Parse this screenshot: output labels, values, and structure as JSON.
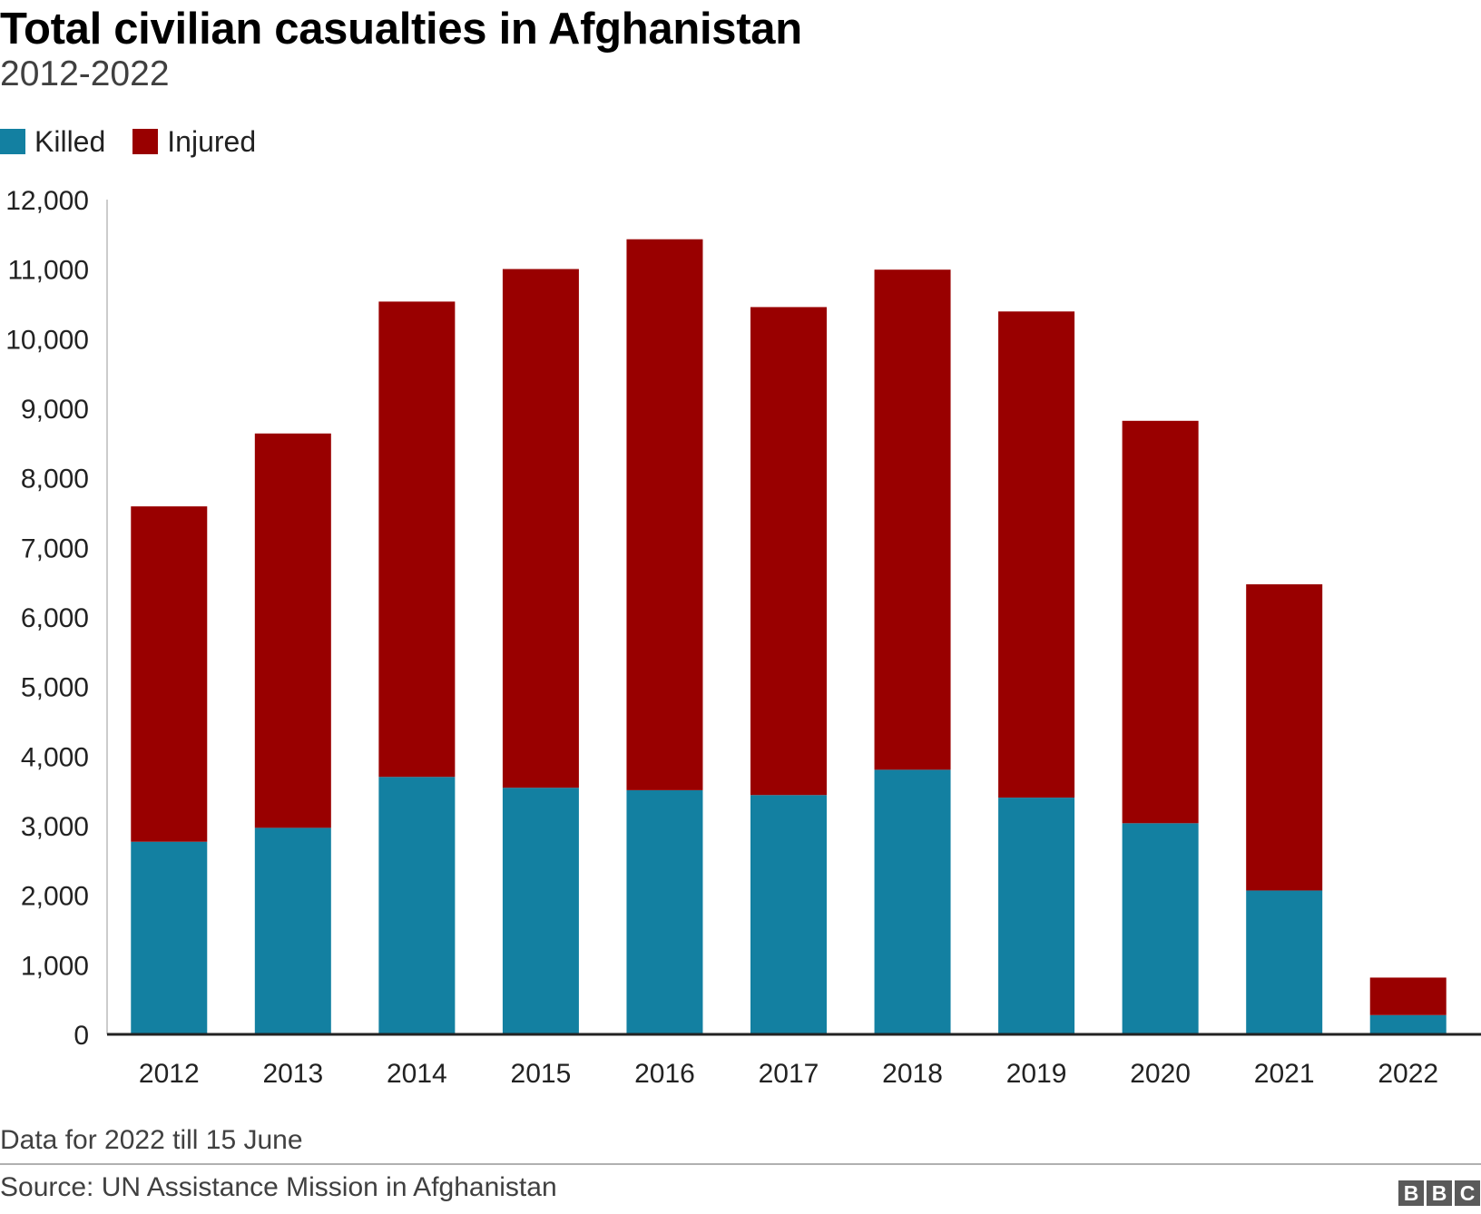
{
  "chart_data": {
    "type": "bar",
    "stacked": true,
    "title": "Total civilian casualties in Afghanistan",
    "subtitle": "2012-2022",
    "categories": [
      "2012",
      "2013",
      "2014",
      "2015",
      "2016",
      "2017",
      "2018",
      "2019",
      "2020",
      "2021",
      "2022"
    ],
    "series": [
      {
        "name": "Killed",
        "color": "#1380a1",
        "values": [
          2769,
          2969,
          3701,
          3545,
          3510,
          3440,
          3804,
          3403,
          3035,
          2068,
          277
        ]
      },
      {
        "name": "Injured",
        "color": "#990000",
        "values": [
          4821,
          5669,
          6833,
          7457,
          7920,
          7015,
          7189,
          6989,
          5785,
          4402,
          539
        ]
      }
    ],
    "ylim": [
      0,
      12000
    ],
    "yticks": [
      0,
      1000,
      2000,
      3000,
      4000,
      5000,
      6000,
      7000,
      8000,
      9000,
      10000,
      11000,
      12000
    ],
    "ytick_labels": [
      "0",
      "1,000",
      "2,000",
      "3,000",
      "4,000",
      "5,000",
      "6,000",
      "7,000",
      "8,000",
      "9,000",
      "10,000",
      "11,000",
      "12,000"
    ],
    "xlabel": "",
    "ylabel": "",
    "grid": false,
    "legend": "top-left"
  },
  "note": "Data for 2022 till 15 June",
  "source": "Source: UN Assistance Mission in Afghanistan",
  "logo": [
    "B",
    "B",
    "C"
  ]
}
